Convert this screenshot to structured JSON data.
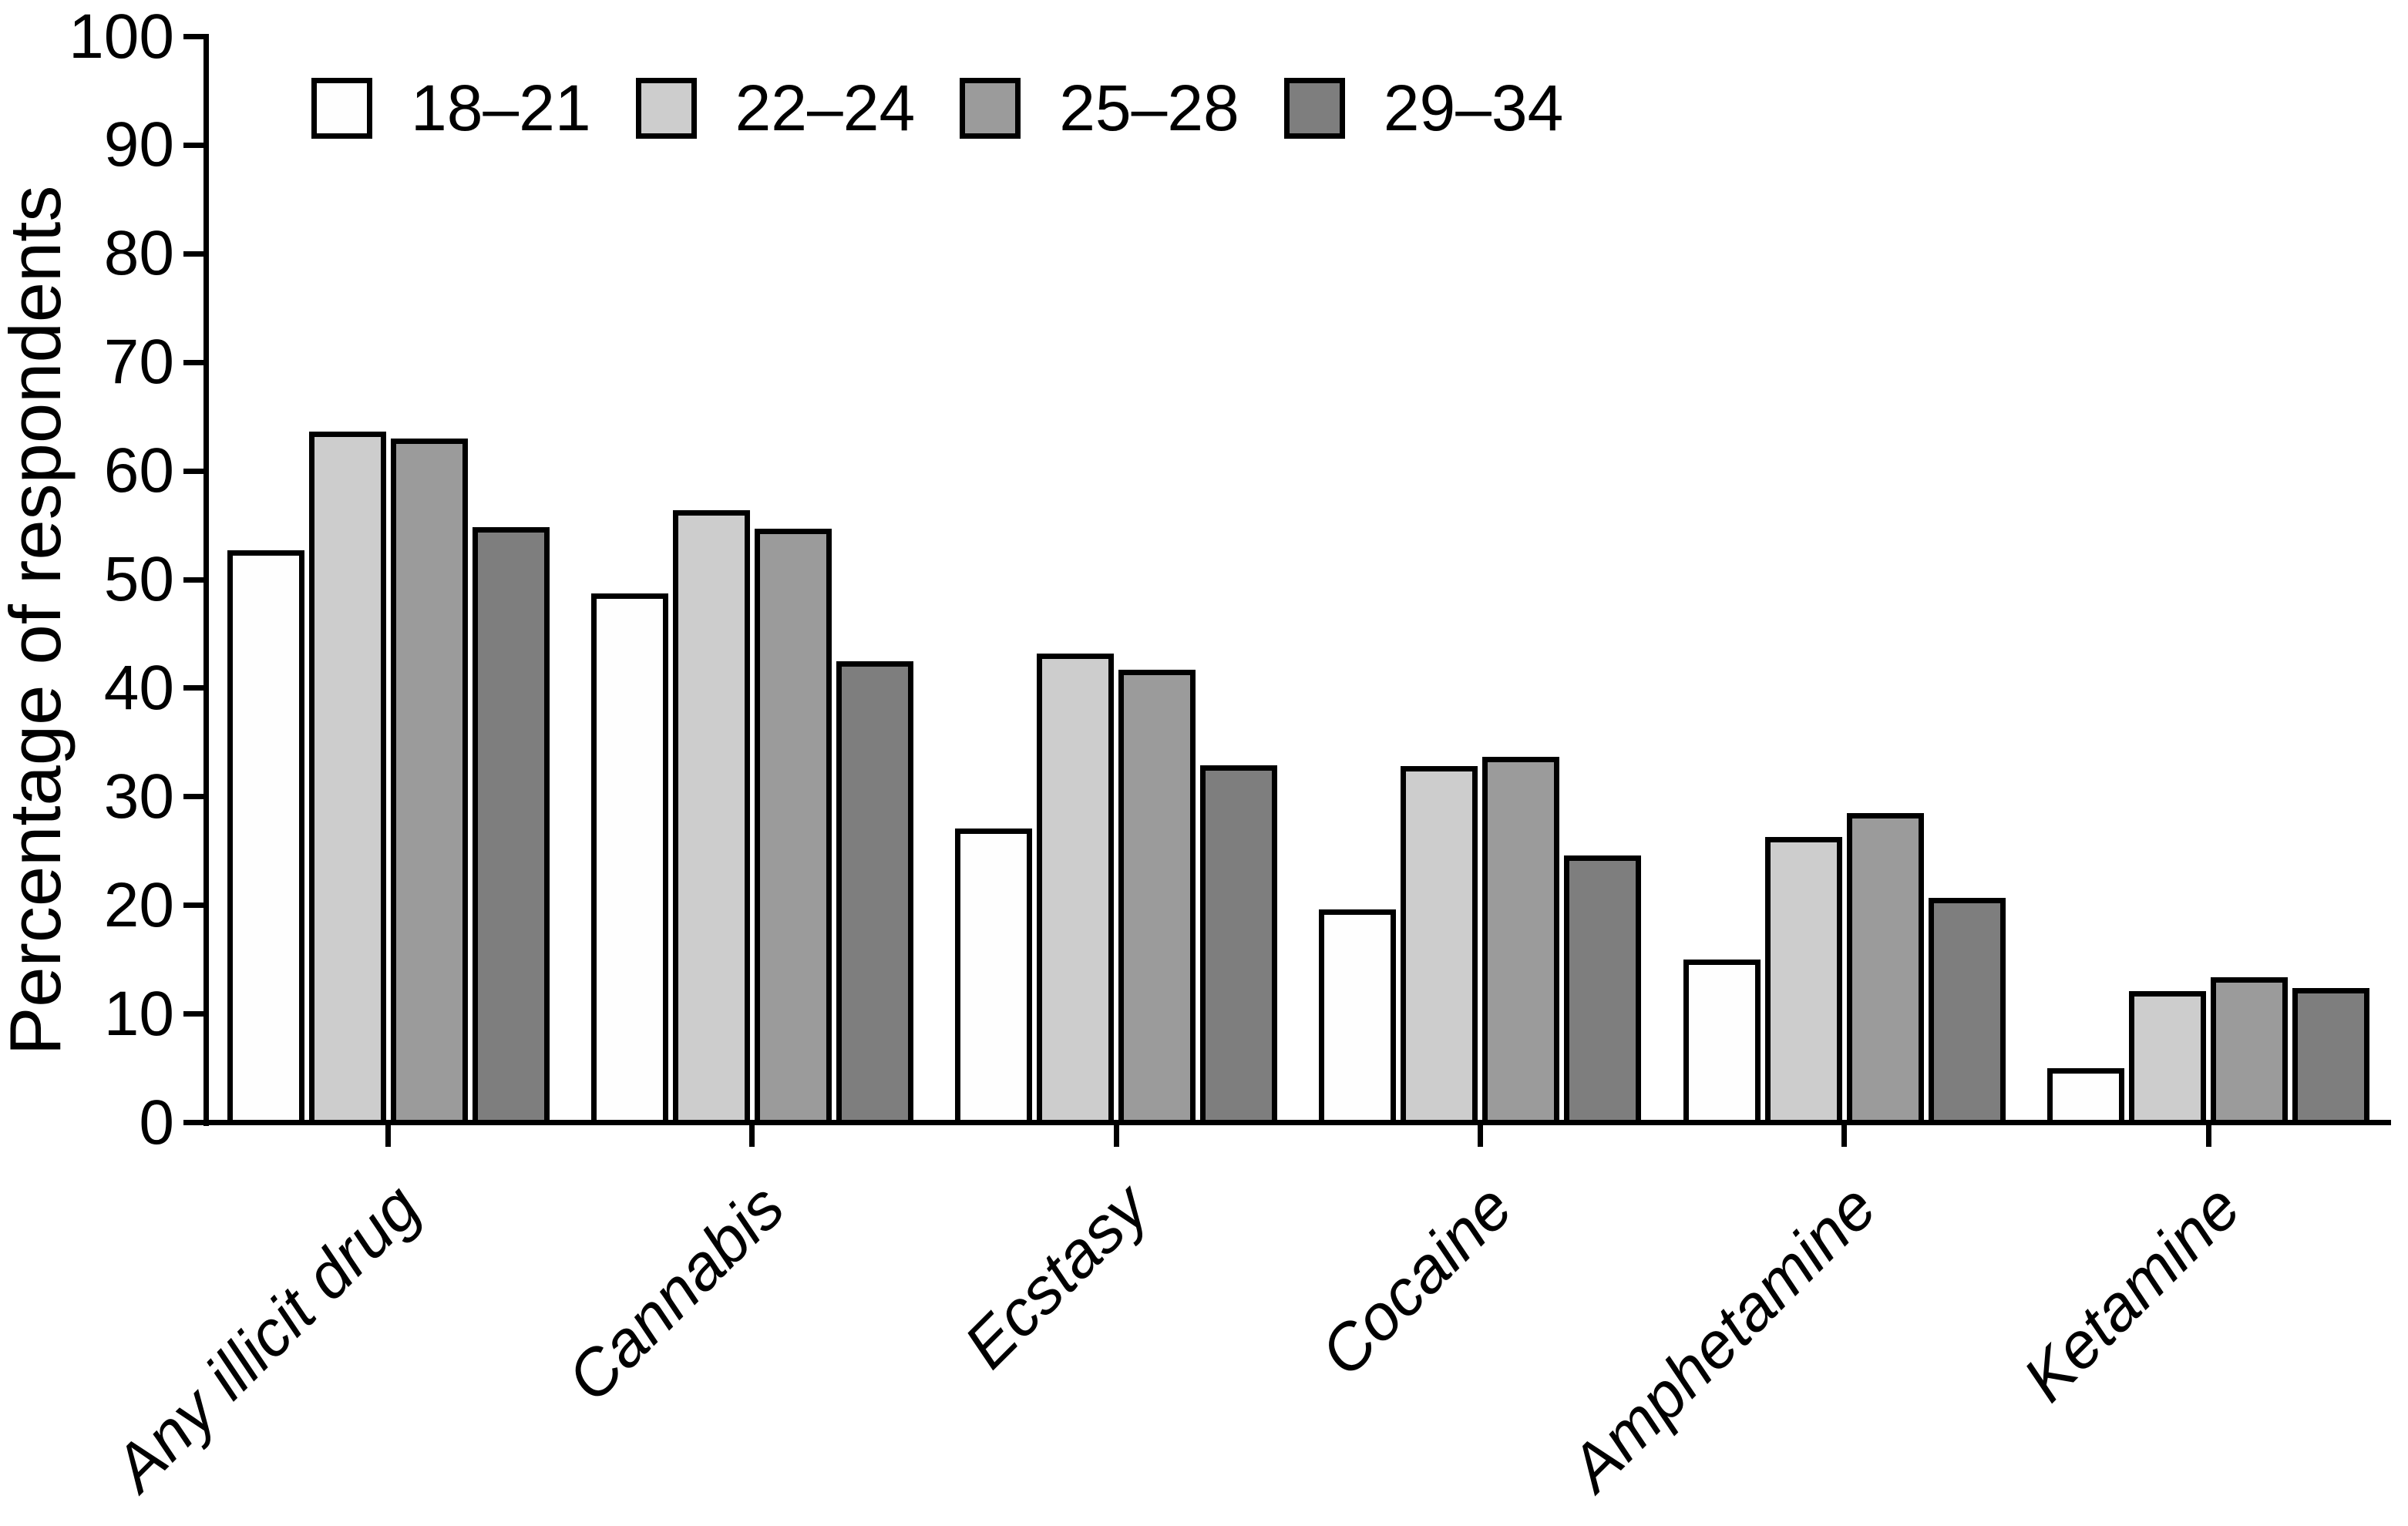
{
  "figure": {
    "background_color": "#ffffff",
    "axis_color": "#000000",
    "text_color": "#000000"
  },
  "chart_data": {
    "type": "bar",
    "title": "",
    "xlabel": "",
    "ylabel": "Percentage of respondents",
    "ylim": [
      0,
      100
    ],
    "ytick_interval": 10,
    "ytick_labels": [
      "0",
      "10",
      "20",
      "30",
      "40",
      "50",
      "60",
      "70",
      "80",
      "90",
      "100"
    ],
    "grid": false,
    "legend_position": "top-left",
    "bar_outline_color": "#000000",
    "categories": [
      "Any illicit drug",
      "Cannabis",
      "Ecstasy",
      "Cocaine",
      "Amphetamine",
      "Ketamine"
    ],
    "series": [
      {
        "name": "18–21",
        "color": "#fefefe",
        "values": [
          52.7,
          48.7,
          27.1,
          19.6,
          15.0,
          5.0
        ]
      },
      {
        "name": "22–24",
        "color": "#cdcdcd",
        "values": [
          63.6,
          56.4,
          43.2,
          32.8,
          26.3,
          12.1
        ]
      },
      {
        "name": "25–28",
        "color": "#9b9b9b",
        "values": [
          63.0,
          54.7,
          41.7,
          33.7,
          28.5,
          13.4
        ]
      },
      {
        "name": "29–34",
        "color": "#7e7e7e",
        "values": [
          54.8,
          42.5,
          32.9,
          24.6,
          20.7,
          12.4
        ]
      }
    ]
  }
}
